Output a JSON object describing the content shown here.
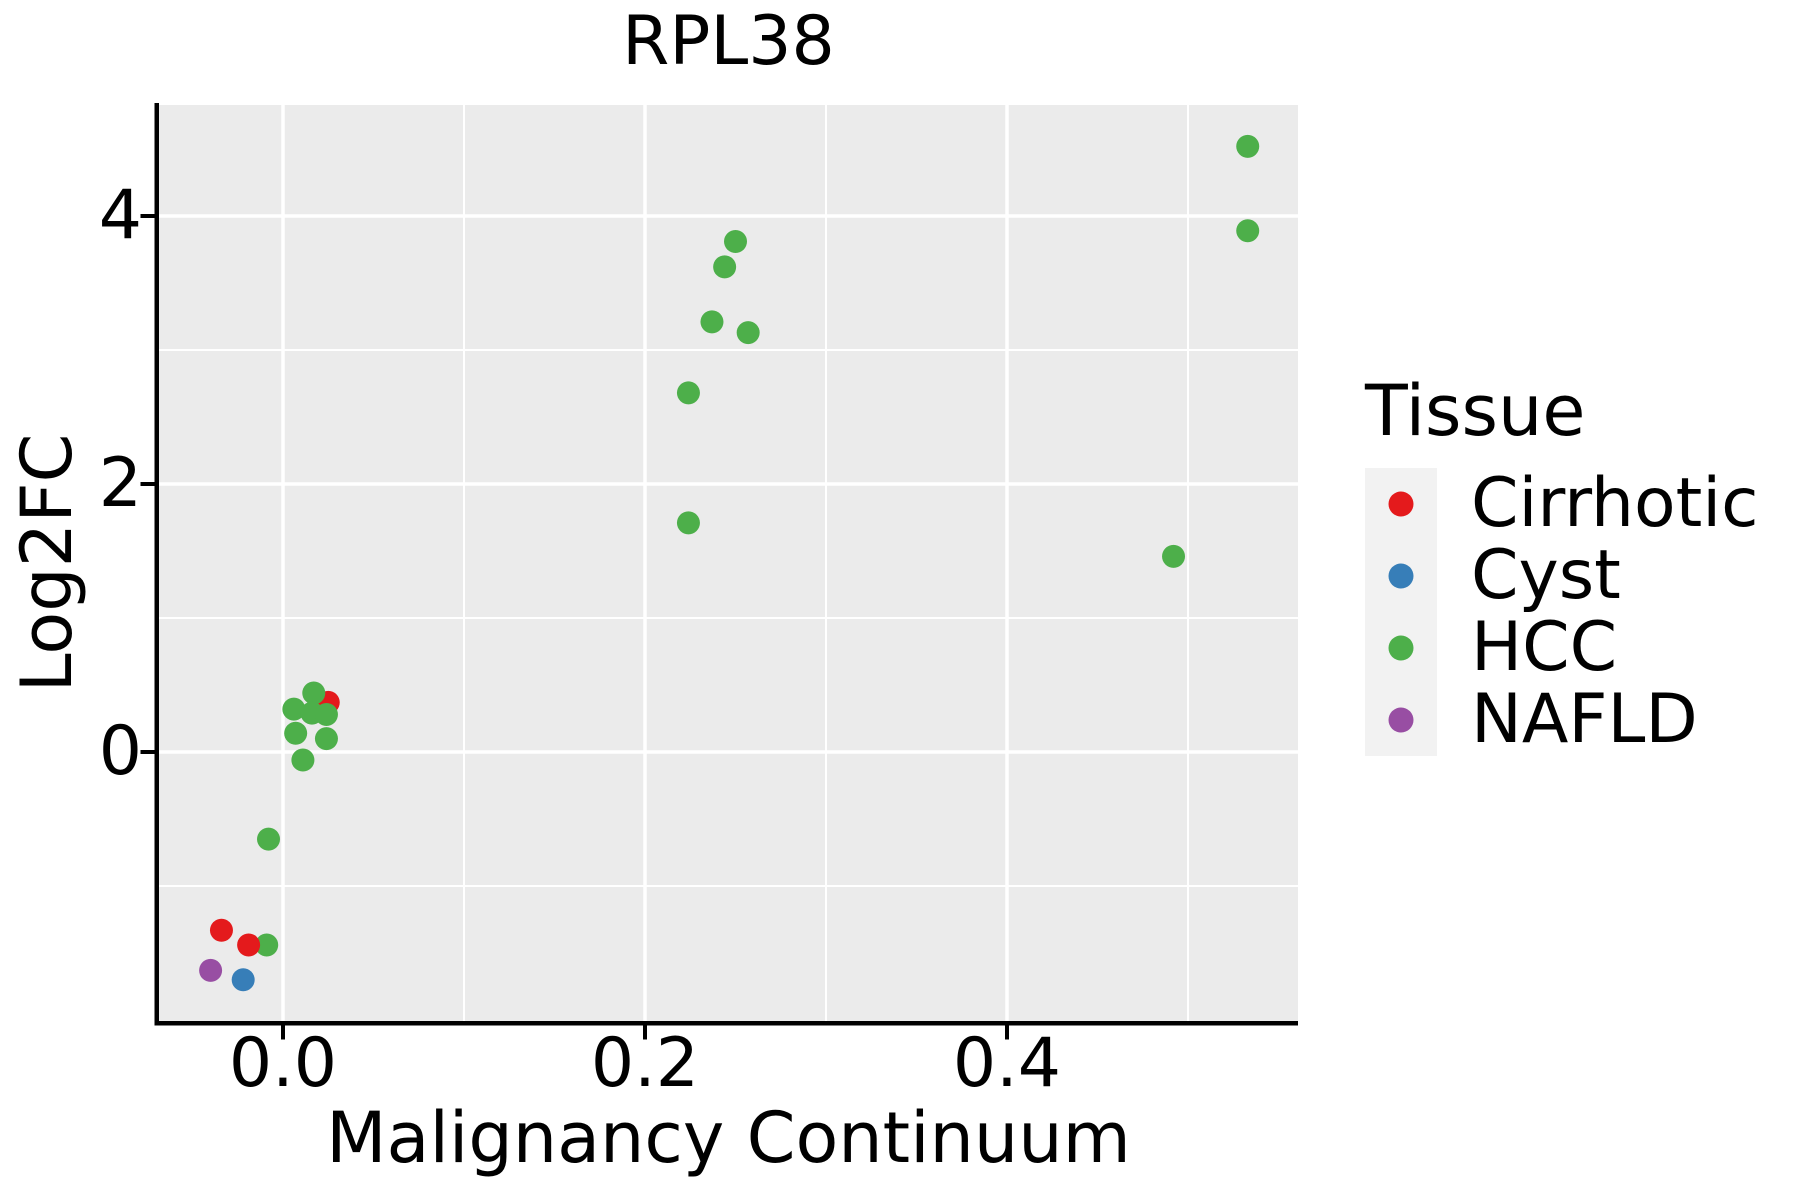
{
  "chart_data": {
    "type": "scatter",
    "title": "RPL38",
    "xlabel": "Malignancy Continuum",
    "ylabel": "Log2FC",
    "legend_title": "Tissue",
    "legend_position": "right",
    "grid": true,
    "xlim": [
      -0.068,
      0.561
    ],
    "ylim": [
      -2.01,
      4.84
    ],
    "x_ticks": [
      {
        "label": "0.0",
        "value": 0.0
      },
      {
        "label": "0.2",
        "value": 0.2
      },
      {
        "label": "0.4",
        "value": 0.4
      }
    ],
    "y_ticks": [
      {
        "label": "4",
        "value": 4
      },
      {
        "label": "2",
        "value": 2
      },
      {
        "label": "0",
        "value": 0
      }
    ],
    "x_minor_gridlines": [
      0.1,
      0.3,
      0.5
    ],
    "y_minor_gridlines": [
      -1,
      1,
      3
    ],
    "series": [
      {
        "name": "Cirrhotic",
        "color": "#e41a1c"
      },
      {
        "name": "Cyst",
        "color": "#377eb8"
      },
      {
        "name": "HCC",
        "color": "#4daf4a"
      },
      {
        "name": "NAFLD",
        "color": "#984ea3"
      }
    ],
    "points": [
      {
        "series": "Cirrhotic",
        "x": 0.025,
        "y": 0.37
      },
      {
        "series": "HCC",
        "x": -0.009,
        "y": -1.44
      },
      {
        "series": "Cirrhotic",
        "x": -0.034,
        "y": -1.33
      },
      {
        "series": "Cirrhotic",
        "x": -0.019,
        "y": -1.44
      },
      {
        "series": "Cyst",
        "x": -0.022,
        "y": -1.7
      },
      {
        "series": "NAFLD",
        "x": -0.04,
        "y": -1.63
      },
      {
        "series": "HCC",
        "x": 0.017,
        "y": 0.44
      },
      {
        "series": "HCC",
        "x": 0.006,
        "y": 0.32
      },
      {
        "series": "HCC",
        "x": 0.016,
        "y": 0.29
      },
      {
        "series": "HCC",
        "x": 0.024,
        "y": 0.28
      },
      {
        "series": "HCC",
        "x": 0.007,
        "y": 0.14
      },
      {
        "series": "HCC",
        "x": 0.024,
        "y": 0.1
      },
      {
        "series": "HCC",
        "x": 0.011,
        "y": -0.06
      },
      {
        "series": "HCC",
        "x": -0.008,
        "y": -0.65
      },
      {
        "series": "HCC",
        "x": 0.224,
        "y": 1.71
      },
      {
        "series": "HCC",
        "x": 0.224,
        "y": 2.68
      },
      {
        "series": "HCC",
        "x": 0.237,
        "y": 3.21
      },
      {
        "series": "HCC",
        "x": 0.257,
        "y": 3.13
      },
      {
        "series": "HCC",
        "x": 0.244,
        "y": 3.62
      },
      {
        "series": "HCC",
        "x": 0.25,
        "y": 3.81
      },
      {
        "series": "HCC",
        "x": 0.492,
        "y": 1.46
      },
      {
        "series": "HCC",
        "x": 0.533,
        "y": 3.89
      },
      {
        "series": "HCC",
        "x": 0.533,
        "y": 4.52
      }
    ],
    "colors": {
      "panel_background": "#ebebeb",
      "gridline": "#ffffff",
      "axis_line": "#000000",
      "legend_key_background": "#f2f2f2",
      "text": "#000000"
    }
  }
}
